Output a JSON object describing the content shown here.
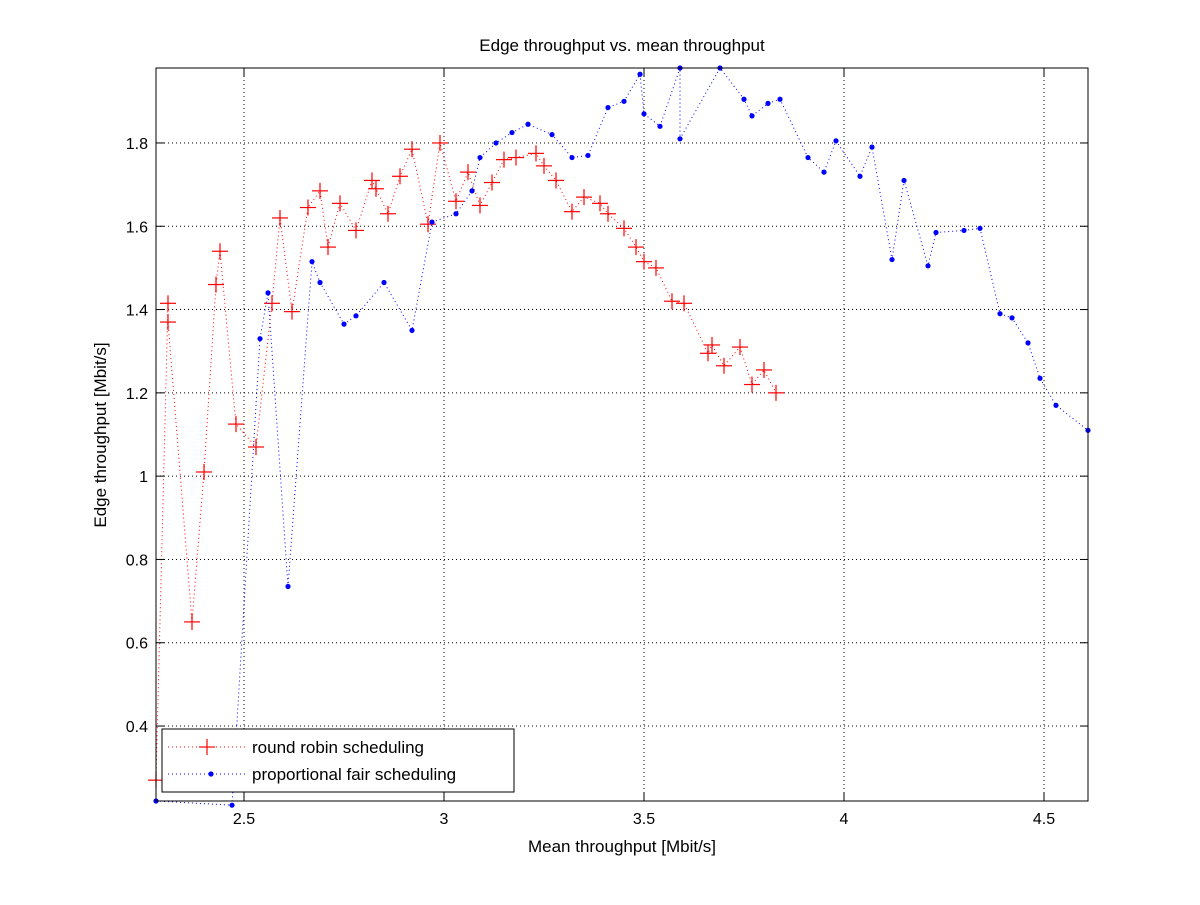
{
  "chart_data": {
    "type": "line",
    "title": "Edge throughput vs. mean throughput",
    "xlabel": "Mean throughput [Mbit/s]",
    "ylabel": "Edge throughput [Mbit/s]",
    "xlim": [
      2.28,
      4.61
    ],
    "ylim": [
      0.22,
      1.98
    ],
    "xticks": [
      2.5,
      3,
      3.5,
      4,
      4.5
    ],
    "xtick_labels": [
      "2.5",
      "3",
      "3.5",
      "4",
      "4.5"
    ],
    "yticks": [
      0.4,
      0.6,
      0.8,
      1.0,
      1.2,
      1.4,
      1.6,
      1.8
    ],
    "ytick_labels": [
      "0.4",
      "0.6",
      "0.8",
      "1",
      "1.2",
      "1.4",
      "1.6",
      "1.8"
    ],
    "grid": true,
    "legend_position": "bottom-left",
    "series": [
      {
        "name": "round robin scheduling",
        "color": "#ff0000",
        "marker": "plus",
        "linestyle": "dotted",
        "x": [
          2.28,
          2.31,
          2.31,
          2.37,
          2.4,
          2.43,
          2.44,
          2.48,
          2.53,
          2.57,
          2.59,
          2.62,
          2.66,
          2.69,
          2.71,
          2.74,
          2.78,
          2.82,
          2.83,
          2.86,
          2.89,
          2.92,
          2.96,
          2.99,
          3.03,
          3.06,
          3.09,
          3.12,
          3.15,
          3.18,
          3.23,
          3.25,
          3.28,
          3.32,
          3.35,
          3.39,
          3.41,
          3.45,
          3.48,
          3.5,
          3.53,
          3.57,
          3.6,
          3.66,
          3.67,
          3.7,
          3.74,
          3.77,
          3.8,
          3.83
        ],
        "y": [
          0.27,
          1.415,
          1.37,
          0.65,
          1.01,
          1.46,
          1.54,
          1.125,
          1.07,
          1.415,
          1.62,
          1.395,
          1.645,
          1.685,
          1.55,
          1.655,
          1.59,
          1.71,
          1.69,
          1.63,
          1.72,
          1.785,
          1.605,
          1.8,
          1.66,
          1.73,
          1.65,
          1.705,
          1.76,
          1.765,
          1.775,
          1.745,
          1.71,
          1.635,
          1.67,
          1.655,
          1.63,
          1.595,
          1.55,
          1.515,
          1.5,
          1.42,
          1.415,
          1.295,
          1.315,
          1.265,
          1.31,
          1.22,
          1.255,
          1.2
        ]
      },
      {
        "name": "proportional fair scheduling",
        "color": "#0000ff",
        "marker": "point",
        "linestyle": "dotted",
        "x": [
          2.28,
          2.47,
          2.54,
          2.56,
          2.61,
          2.67,
          2.69,
          2.75,
          2.78,
          2.85,
          2.92,
          2.97,
          3.03,
          3.07,
          3.09,
          3.13,
          3.17,
          3.21,
          3.27,
          3.32,
          3.36,
          3.41,
          3.45,
          3.49,
          3.5,
          3.54,
          3.59,
          3.59,
          3.69,
          3.75,
          3.77,
          3.81,
          3.84,
          3.91,
          3.95,
          3.98,
          4.04,
          4.07,
          4.12,
          4.15,
          4.21,
          4.23,
          4.3,
          4.34,
          4.39,
          4.42,
          4.46,
          4.49,
          4.53,
          4.61
        ],
        "y": [
          0.22,
          0.21,
          1.33,
          1.44,
          0.735,
          1.515,
          1.465,
          1.365,
          1.385,
          1.465,
          1.35,
          1.61,
          1.63,
          1.685,
          1.765,
          1.8,
          1.825,
          1.845,
          1.82,
          1.765,
          1.77,
          1.885,
          1.9,
          1.965,
          1.87,
          1.84,
          1.98,
          1.81,
          1.98,
          1.905,
          1.865,
          1.895,
          1.905,
          1.765,
          1.73,
          1.805,
          1.72,
          1.79,
          1.52,
          1.71,
          1.505,
          1.585,
          1.59,
          1.595,
          1.39,
          1.38,
          1.32,
          1.235,
          1.17,
          1.11
        ]
      }
    ]
  }
}
